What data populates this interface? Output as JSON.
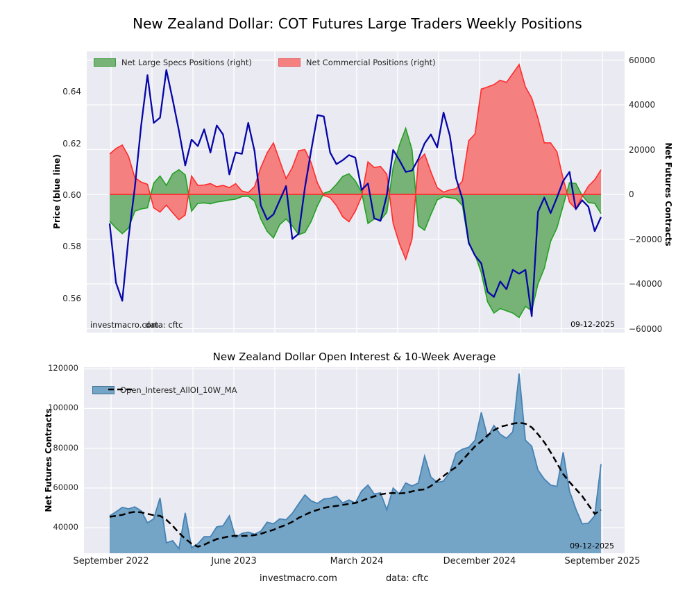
{
  "figure": {
    "title": "New Zealand Dollar: COT Futures Large Traders Weekly Positions",
    "watermark": "investmacro.com",
    "source": "data: cftc",
    "date": "09-12-2025"
  },
  "top_chart": {
    "legend": {
      "specs": "Net Large Specs Positions (right)",
      "commercial": "Net Commercial Positions (right)"
    },
    "ylabel_left": "Price (blue line)",
    "ylabel_right": "Net Futures Contracts",
    "y_left_ticks": [
      "0.64",
      "0.62",
      "0.60",
      "0.58",
      "0.56"
    ],
    "y_right_ticks": [
      "60000",
      "40000",
      "20000",
      "0",
      "−20000",
      "−40000",
      "−60000"
    ],
    "watermark": "investmacro.com",
    "source": "data: cftc",
    "date": "09-12-2025"
  },
  "bottom_chart": {
    "title": "New Zealand Dollar Open Interest & 10-Week Average",
    "legend": {
      "oi": "Open_Interest_All",
      "ma": "OI_10W_MA"
    },
    "ylabel": "Net Futures Contracts",
    "y_ticks": [
      "120000",
      "100000",
      "80000",
      "60000",
      "40000"
    ],
    "date": "09-12-2025"
  },
  "x_axis": {
    "tick_labels": [
      "September 2022",
      "June 2023",
      "March 2024",
      "December 2024",
      "September 2025"
    ]
  },
  "footer": {
    "watermark": "investmacro.com",
    "source": "data: cftc"
  },
  "colors": {
    "price_line": "#0606A8",
    "specs_fill": "#77B377",
    "specs_edge": "#22A022",
    "comm_fill": "#F58080",
    "comm_edge": "#FF2C2C",
    "zero_line": "#FF2C2C",
    "oi_fill": "#74A4C6",
    "oi_edge": "#4682B4",
    "ma_line": "#000000",
    "plot_bg": "#EAEAF2",
    "grid": "#FFFFFF"
  },
  "chart_data": [
    {
      "type": "area",
      "title": "New Zealand Dollar: COT Futures Large Traders Weekly Positions",
      "x_range": [
        "2022-09",
        "2025-09"
      ],
      "x_tick_labels": [
        "September 2022",
        "June 2023",
        "March 2024",
        "December 2024",
        "September 2025"
      ],
      "ylabel_left": "Price (blue line)",
      "ylabel_right": "Net Futures Contracts",
      "ylim_price": [
        0.547,
        0.656
      ],
      "ylim_contracts": [
        -61700,
        63900
      ],
      "series": [
        {
          "name": "Price",
          "axis": "left",
          "style": "line",
          "values": [
            0.589,
            0.566,
            0.559,
            0.5835,
            0.603,
            0.627,
            0.6465,
            0.628,
            0.63,
            0.6485,
            0.637,
            0.625,
            0.6115,
            0.6215,
            0.619,
            0.6255,
            0.6165,
            0.627,
            0.6235,
            0.608,
            0.6165,
            0.616,
            0.628,
            0.617,
            0.596,
            0.5905,
            0.5925,
            0.598,
            0.6035,
            0.583,
            0.585,
            0.603,
            0.6175,
            0.631,
            0.6305,
            0.6165,
            0.612,
            0.6135,
            0.6155,
            0.6145,
            0.602,
            0.6045,
            0.591,
            0.59,
            0.6,
            0.6175,
            0.6135,
            0.609,
            0.6095,
            0.614,
            0.62,
            0.6235,
            0.6185,
            0.632,
            0.623,
            0.6065,
            0.5985,
            0.5815,
            0.5765,
            0.5735,
            0.5625,
            0.5605,
            0.5665,
            0.5635,
            0.571,
            0.5695,
            0.571,
            0.553,
            0.5935,
            0.599,
            0.593,
            0.599,
            0.6055,
            0.609,
            0.5945,
            0.598,
            0.5955,
            0.586,
            0.5915
          ]
        },
        {
          "name": "Net Large Specs Positions (right)",
          "axis": "right",
          "style": "area",
          "values": [
            -12000,
            -15000,
            -17500,
            -15000,
            -7500,
            -6500,
            -6000,
            5000,
            8200,
            4000,
            9200,
            11000,
            8700,
            -7500,
            -4000,
            -3800,
            -4200,
            -3400,
            -3000,
            -2500,
            -2100,
            -1000,
            -800,
            -3000,
            -11000,
            -16500,
            -19500,
            -13500,
            -11000,
            -14000,
            -18000,
            -17000,
            -12000,
            -5000,
            500,
            1500,
            4500,
            8000,
            9200,
            6000,
            1000,
            -13000,
            -11000,
            -11500,
            -8000,
            12000,
            22000,
            29500,
            20000,
            -14000,
            -16000,
            -9000,
            -2500,
            -1000,
            -1500,
            -2000,
            -5000,
            -22000,
            -27000,
            -35000,
            -48000,
            -53000,
            -51000,
            -52000,
            -53000,
            -55000,
            -50000,
            -52000,
            -40000,
            -33000,
            -21000,
            -15000,
            -5000,
            5200,
            4900,
            -500,
            -3700,
            -4000,
            -8600
          ]
        },
        {
          "name": "Net Commercial Positions (right)",
          "axis": "right",
          "style": "area",
          "values": [
            18000,
            20500,
            22000,
            17000,
            7500,
            5500,
            4500,
            -6000,
            -7900,
            -4800,
            -8200,
            -11300,
            -9200,
            8200,
            4000,
            4200,
            4800,
            3400,
            4000,
            3000,
            4800,
            1500,
            800,
            3500,
            12000,
            18500,
            23000,
            15000,
            7000,
            12000,
            19500,
            20000,
            14000,
            5000,
            -500,
            -1500,
            -5000,
            -10000,
            -12200,
            -7500,
            -1000,
            14500,
            12000,
            12500,
            9000,
            -13000,
            -22000,
            -29000,
            -20000,
            15000,
            18000,
            10000,
            3000,
            1000,
            2000,
            2500,
            6000,
            24000,
            27000,
            47000,
            48000,
            49000,
            51000,
            50000,
            54000,
            58000,
            48000,
            43000,
            34000,
            23000,
            23000,
            19000,
            7000,
            -3500,
            -6500,
            -1000,
            3700,
            6500,
            11000
          ]
        }
      ],
      "annotations": [
        "investmacro.com",
        "data: cftc",
        "09-12-2025"
      ]
    },
    {
      "type": "area",
      "title": "New Zealand Dollar Open Interest & 10-Week Average",
      "x_range": [
        "2022-09",
        "2025-09"
      ],
      "x_tick_labels": [
        "September 2022",
        "June 2023",
        "March 2024",
        "December 2024",
        "September 2025"
      ],
      "ylabel": "Net Futures Contracts",
      "ylim": [
        27200,
        120700
      ],
      "series": [
        {
          "name": "Open_Interest_All",
          "style": "area",
          "values": [
            46000,
            48000,
            50300,
            49500,
            50500,
            48500,
            42500,
            44500,
            55000,
            32500,
            33500,
            29500,
            47500,
            30000,
            32000,
            35500,
            35500,
            40500,
            41000,
            46000,
            35000,
            37200,
            37800,
            36800,
            38300,
            42800,
            42000,
            44500,
            44000,
            47300,
            52000,
            56500,
            53500,
            52300,
            54500,
            54800,
            55800,
            52500,
            54000,
            52500,
            58500,
            61500,
            57000,
            57600,
            49000,
            60000,
            57000,
            62500,
            61000,
            62500,
            76000,
            65500,
            62800,
            63500,
            68000,
            77500,
            79500,
            80500,
            84000,
            98000,
            85500,
            91400,
            87000,
            85000,
            88300,
            117500,
            84000,
            81000,
            69000,
            64500,
            61500,
            60800,
            78000,
            58500,
            49500,
            42000,
            42300,
            46000,
            72000
          ]
        },
        {
          "name": "OI_10W_MA",
          "style": "dashed-line",
          "values": [
            45500,
            46000,
            46500,
            47500,
            48000,
            47800,
            47000,
            46300,
            46000,
            44000,
            41000,
            37500,
            34500,
            32000,
            30500,
            31500,
            33000,
            34300,
            35000,
            35700,
            36000,
            35900,
            36000,
            36300,
            37000,
            38000,
            39000,
            40300,
            41500,
            43000,
            45000,
            46500,
            48000,
            49000,
            50000,
            50600,
            51000,
            51500,
            52000,
            52500,
            53500,
            54800,
            55800,
            56800,
            57300,
            57500,
            57300,
            57500,
            58300,
            59000,
            59300,
            61000,
            63500,
            66000,
            68500,
            70500,
            74000,
            77500,
            81000,
            83500,
            86500,
            89000,
            90800,
            91500,
            92300,
            92800,
            92300,
            90500,
            87000,
            83000,
            78000,
            72500,
            67000,
            63000,
            59500,
            56000,
            51500,
            47000,
            49000
          ]
        }
      ],
      "annotations": [
        "09-12-2025",
        "investmacro.com",
        "data: cftc"
      ]
    }
  ]
}
